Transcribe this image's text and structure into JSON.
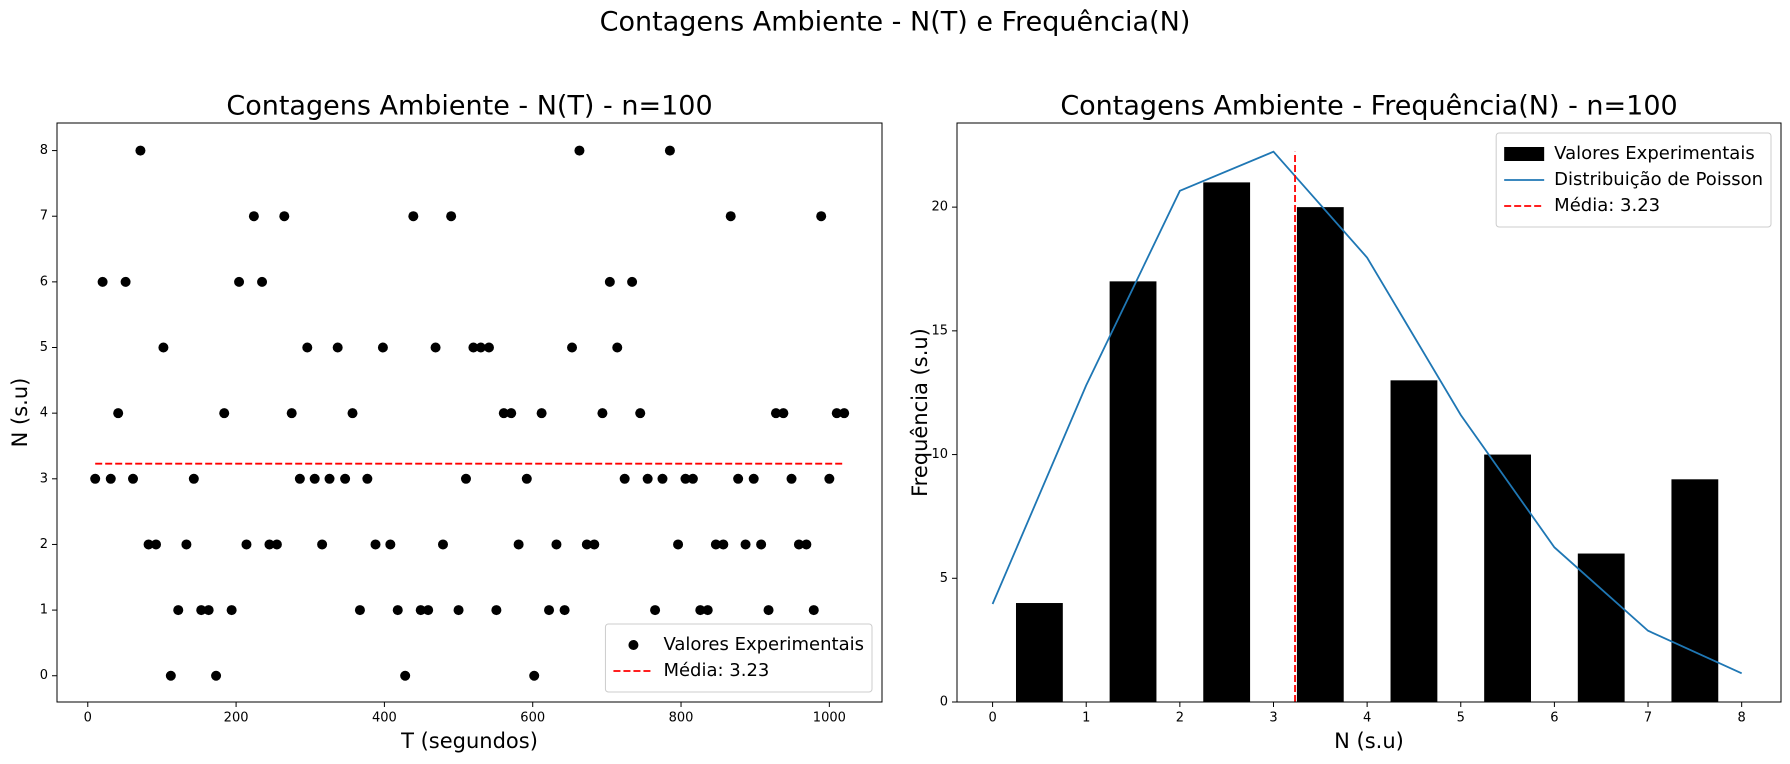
{
  "figure_title": "Contagens Ambiente - N(T) e Frequência(N)",
  "chart_data": [
    {
      "type": "scatter",
      "title": "Contagens Ambiente - N(T) - n=100",
      "xlabel": "T (segundos)",
      "ylabel": "N (s.u)",
      "x": [
        10,
        20,
        31,
        41,
        51,
        61,
        71,
        82,
        92,
        102,
        112,
        122,
        133,
        143,
        153,
        163,
        173,
        184,
        194,
        204,
        214,
        224,
        235,
        245,
        255,
        265,
        275,
        286,
        296,
        306,
        316,
        326,
        337,
        347,
        357,
        367,
        377,
        388,
        398,
        408,
        418,
        428,
        439,
        449,
        459,
        469,
        479,
        490,
        500,
        510,
        520,
        530,
        541,
        551,
        561,
        571,
        581,
        592,
        602,
        612,
        622,
        632,
        643,
        653,
        663,
        673,
        683,
        694,
        704,
        714,
        724,
        734,
        745,
        755,
        765,
        775,
        785,
        796,
        806,
        816,
        826,
        836,
        847,
        857,
        867,
        877,
        887,
        898,
        908,
        918,
        928,
        938,
        949,
        959,
        969,
        979,
        989,
        1000,
        1010,
        1020
      ],
      "series": [
        {
          "name": "Valores Experimentais",
          "color": "#000000",
          "values": [
            3,
            6,
            3,
            4,
            6,
            3,
            8,
            2,
            2,
            5,
            0,
            1,
            2,
            3,
            1,
            1,
            0,
            4,
            1,
            6,
            2,
            7,
            6,
            2,
            2,
            7,
            4,
            3,
            5,
            3,
            2,
            3,
            5,
            3,
            4,
            1,
            3,
            2,
            5,
            2,
            1,
            0,
            7,
            1,
            1,
            5,
            2,
            7,
            1,
            3,
            5,
            5,
            5,
            1,
            4,
            4,
            2,
            3,
            0,
            4,
            1,
            2,
            1,
            5,
            8,
            2,
            2,
            4,
            6,
            5,
            3,
            6,
            4,
            3,
            1,
            3,
            8,
            2,
            3,
            3,
            1,
            1,
            2,
            2,
            7,
            3,
            2,
            3,
            2,
            1,
            4,
            4,
            3,
            2,
            2,
            1,
            7,
            3,
            4,
            4
          ]
        }
      ],
      "mean_line": {
        "name": "Média: 3.23",
        "value": 3.23,
        "color": "#ff0000"
      },
      "xlim": [
        -41.5,
        1071
      ],
      "ylim": [
        -0.4,
        8.42
      ],
      "xticks": [
        0,
        200,
        400,
        600,
        800,
        1000
      ],
      "yticks": [
        0,
        1,
        2,
        3,
        4,
        5,
        6,
        7,
        8
      ],
      "legend": "lower right"
    },
    {
      "type": "histogram",
      "title": "Contagens Ambiente - Frequência(N) - n=100",
      "xlabel": "N (s.u)",
      "ylabel": "Frequência (s.u)",
      "bins": [
        0,
        1,
        2,
        3,
        4,
        5,
        6,
        7,
        8
      ],
      "series": [
        {
          "name": "Valores Experimentais",
          "color": "#000000",
          "values": [
            4,
            17,
            21,
            20,
            13,
            10,
            6,
            9
          ]
        }
      ],
      "lines": [
        {
          "name": "Distribuição de Poisson",
          "color": "#1f77b4",
          "x": [
            0,
            1,
            2,
            3,
            4,
            5,
            6,
            7,
            8
          ],
          "values": [
            3.96,
            12.8,
            20.66,
            22.24,
            17.96,
            11.6,
            6.25,
            2.88,
            1.16
          ]
        }
      ],
      "mean_line": {
        "name": "Média: 3.23",
        "value": 3.23,
        "color": "#ff0000"
      },
      "xlim": [
        -0.38,
        8.42
      ],
      "ylim": [
        0,
        23.4
      ],
      "xticks": [
        0,
        1,
        2,
        3,
        4,
        5,
        6,
        7,
        8
      ],
      "yticks": [
        0,
        5,
        10,
        15,
        20
      ],
      "legend": "upper right"
    }
  ]
}
